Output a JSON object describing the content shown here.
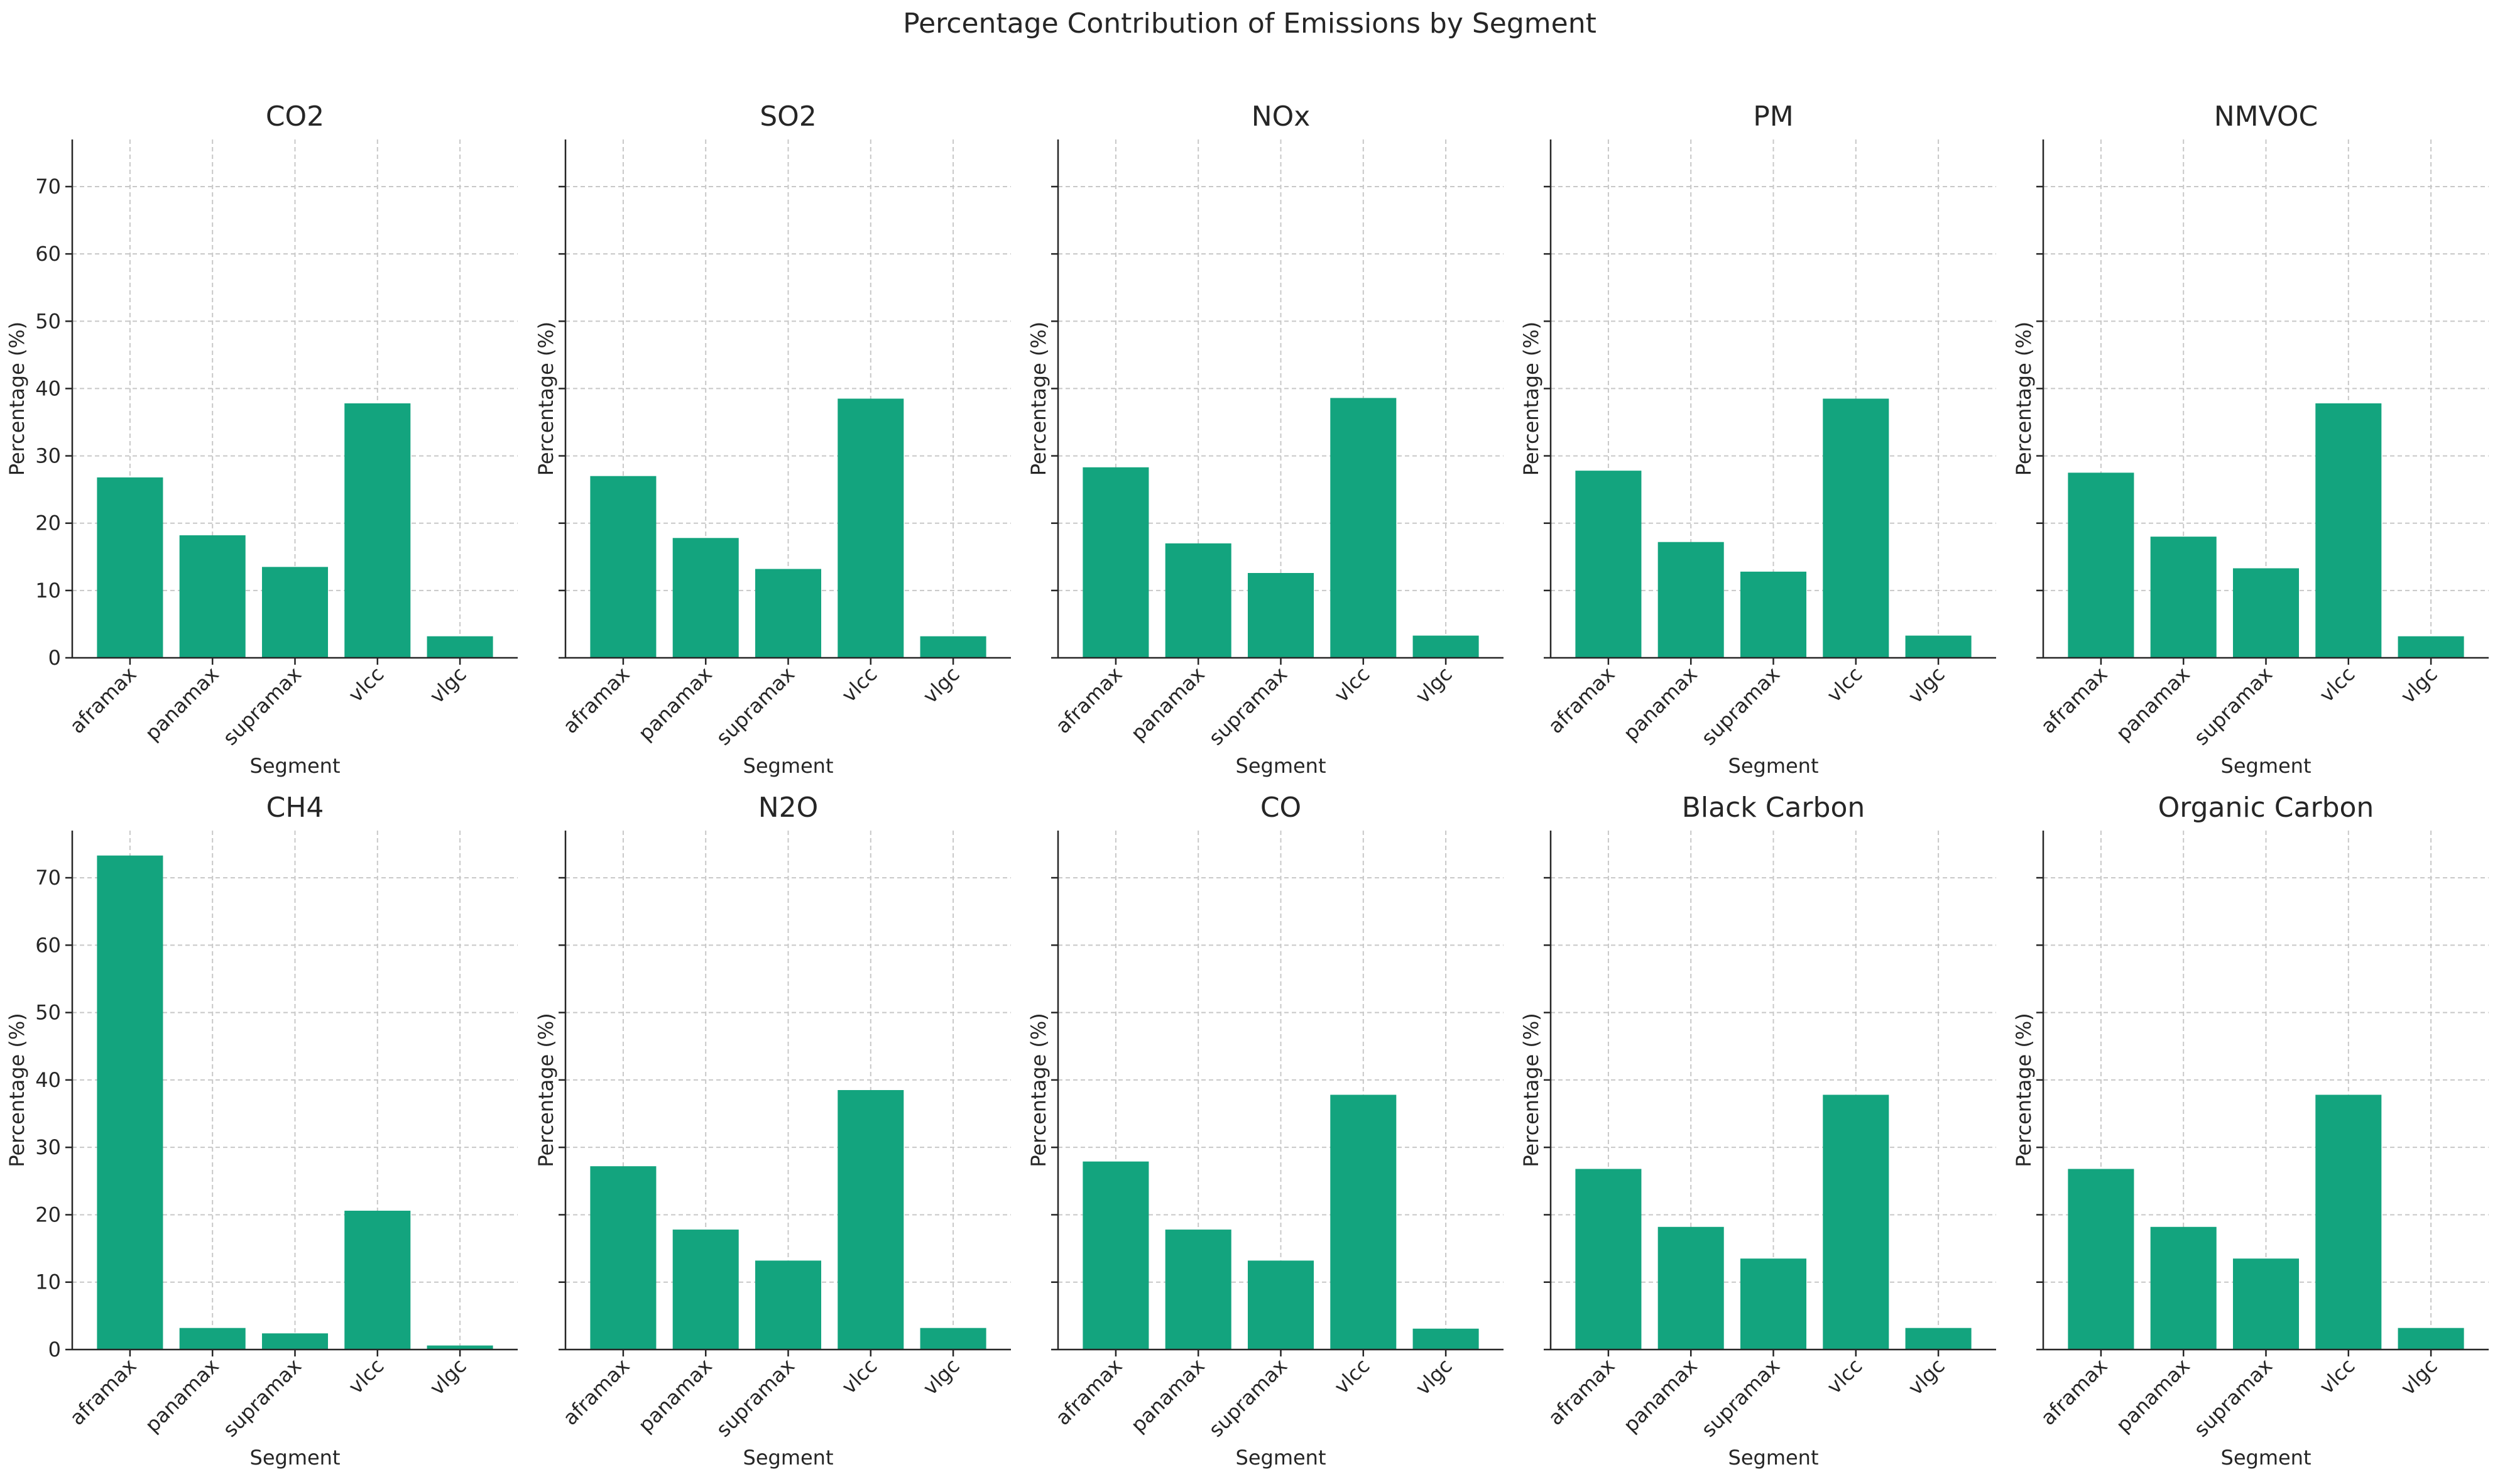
{
  "chart_data": {
    "type": "bar",
    "title": "Percentage Contribution of Emissions by Segment",
    "xlabel": "Segment",
    "ylabel": "Percentage (%)",
    "ylim": [
      0,
      77
    ],
    "yticks": [
      0,
      10,
      20,
      30,
      40,
      50,
      60,
      70
    ],
    "grid": true,
    "shared_y": true,
    "categories": [
      "aframax",
      "panamax",
      "supramax",
      "vlcc",
      "vlgc"
    ],
    "bar_color": "#13a47e",
    "panels": [
      {
        "title": "CO2",
        "values": [
          26.8,
          18.2,
          13.5,
          37.8,
          3.2
        ]
      },
      {
        "title": "SO2",
        "values": [
          27.0,
          17.8,
          13.2,
          38.5,
          3.2
        ]
      },
      {
        "title": "NOx",
        "values": [
          28.3,
          17.0,
          12.6,
          38.6,
          3.3
        ]
      },
      {
        "title": "PM",
        "values": [
          27.8,
          17.2,
          12.8,
          38.5,
          3.3
        ]
      },
      {
        "title": "NMVOC",
        "values": [
          27.5,
          18.0,
          13.3,
          37.8,
          3.2
        ]
      },
      {
        "title": "CH4",
        "values": [
          73.3,
          3.2,
          2.4,
          20.6,
          0.6
        ]
      },
      {
        "title": "N2O",
        "values": [
          27.2,
          17.8,
          13.2,
          38.5,
          3.2
        ]
      },
      {
        "title": "CO",
        "values": [
          27.9,
          17.8,
          13.2,
          37.8,
          3.1
        ]
      },
      {
        "title": "Black Carbon",
        "values": [
          26.8,
          18.2,
          13.5,
          37.8,
          3.2
        ]
      },
      {
        "title": "Organic Carbon",
        "values": [
          26.8,
          18.2,
          13.5,
          37.8,
          3.2
        ]
      }
    ]
  }
}
